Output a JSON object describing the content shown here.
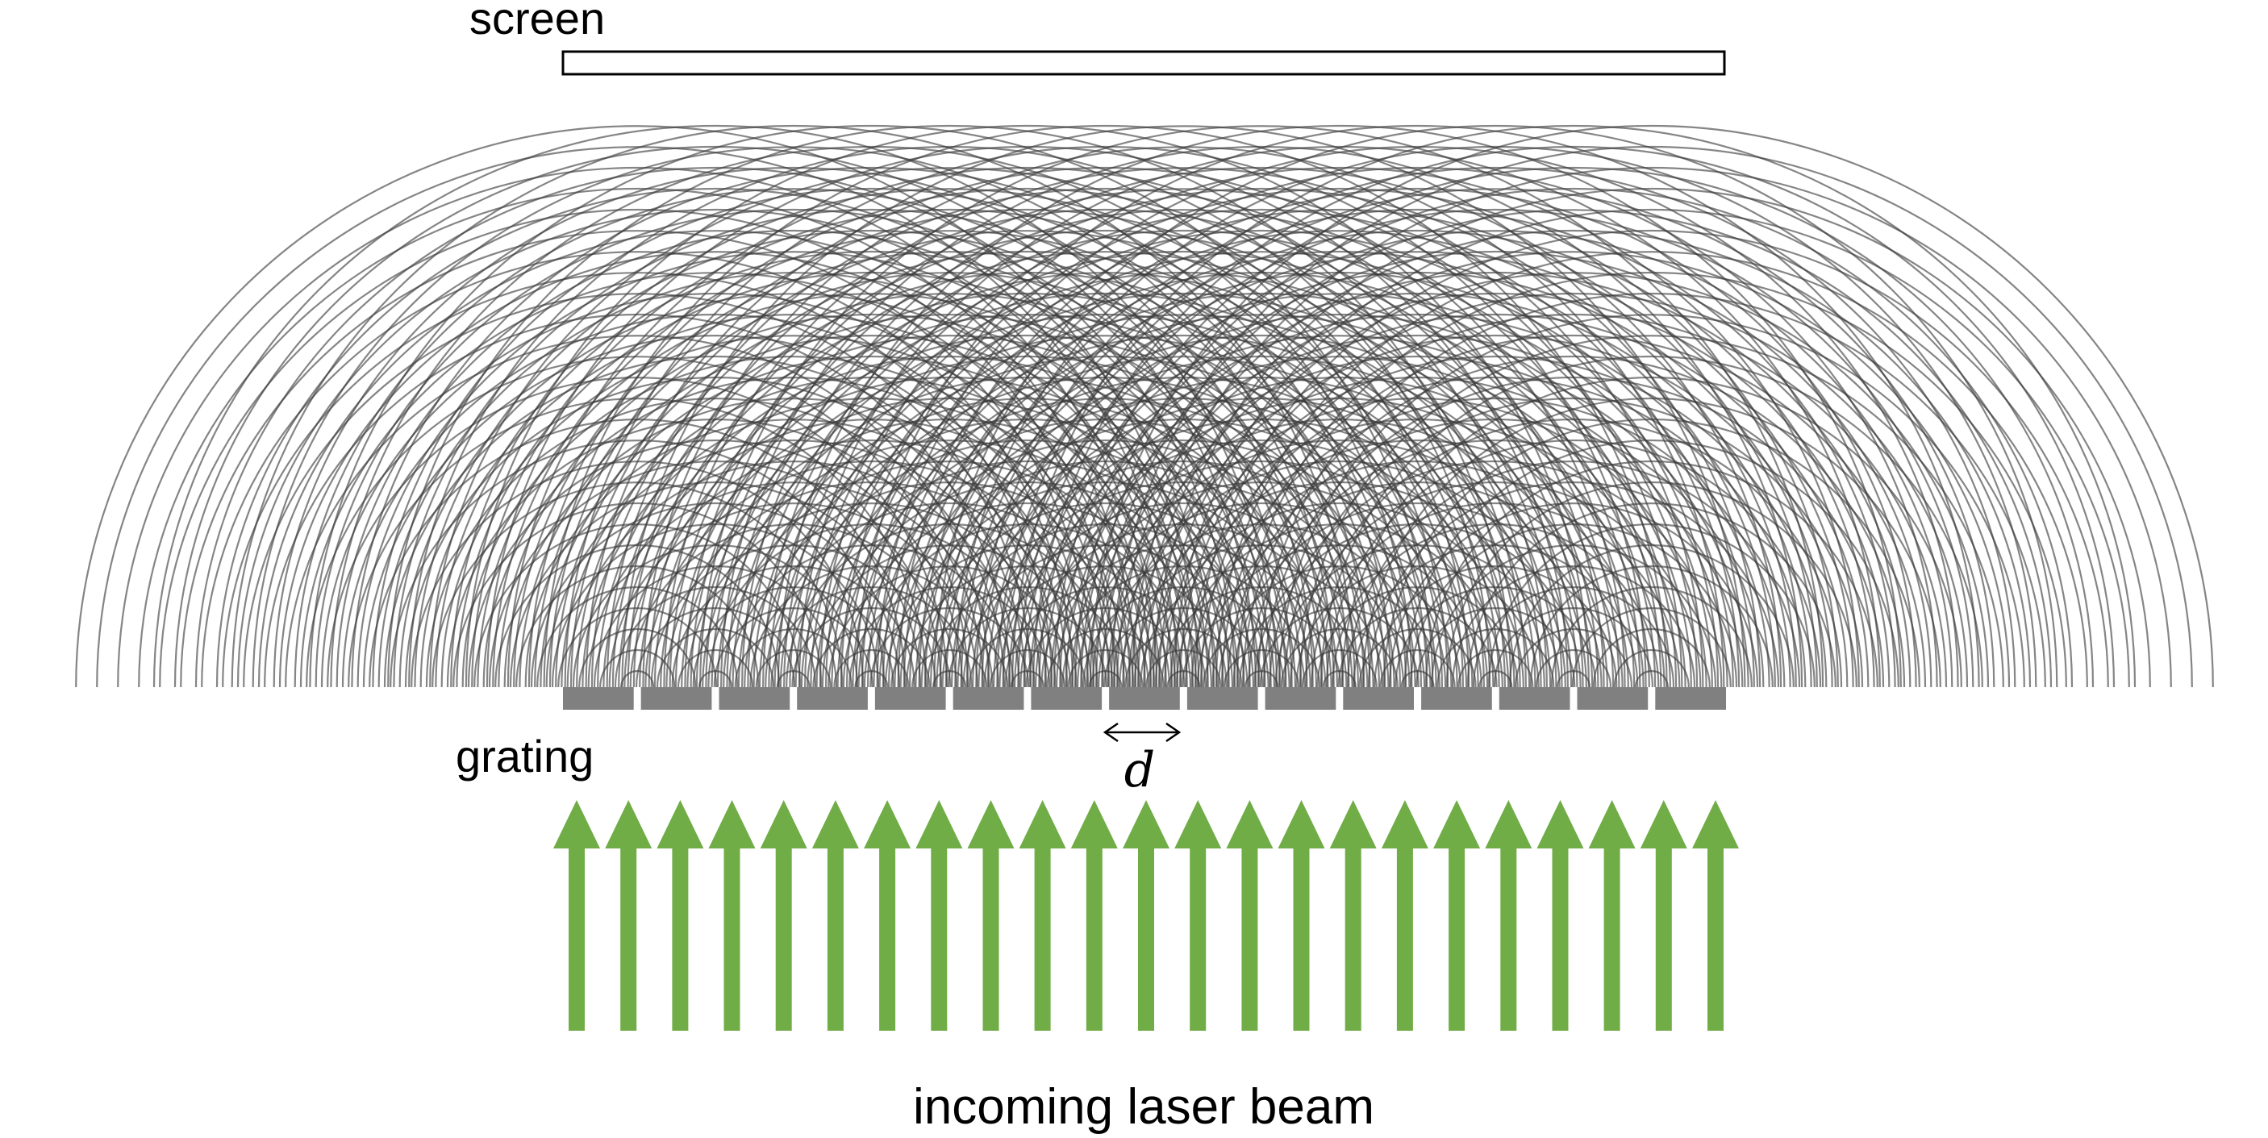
{
  "labels": {
    "screen": "screen",
    "grating": "grating",
    "spacing": "d",
    "beam": "incoming laser beam"
  },
  "grating": {
    "slit_count": 14,
    "bar_color": "#808080"
  },
  "waves": {
    "color": "#3a3a3a"
  },
  "beam": {
    "arrow_count": 23,
    "color": "#70ad47"
  },
  "screen_style": {
    "stroke": "#000000",
    "fill": "#ffffff"
  }
}
